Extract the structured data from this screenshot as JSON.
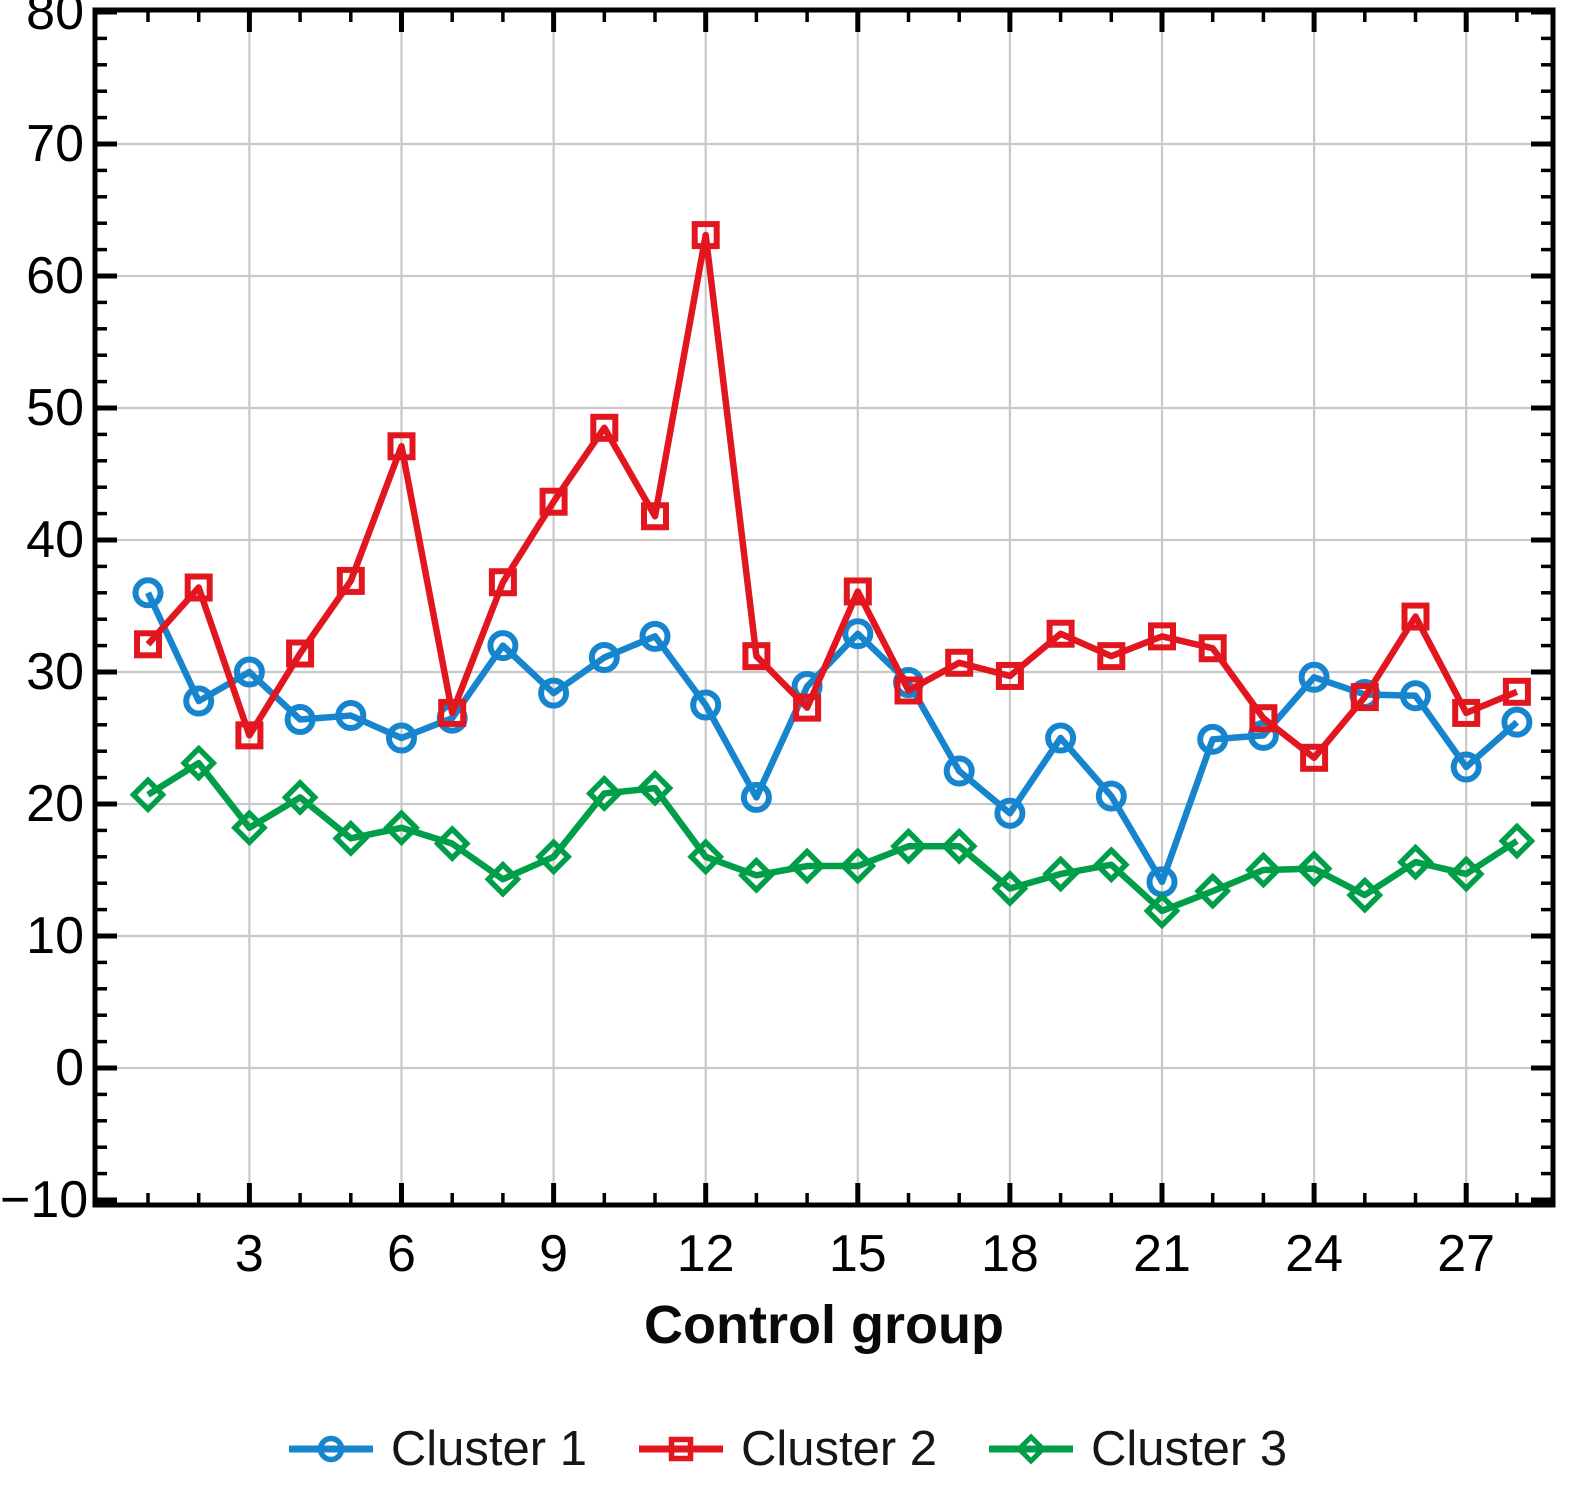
{
  "chart_data": {
    "type": "line",
    "xlabel": "Control group",
    "ylabel": "",
    "ylim": [
      -10,
      80
    ],
    "xlim": [
      0,
      28.7
    ],
    "grid": true,
    "legend_position": "bottom",
    "x": [
      1,
      2,
      3,
      4,
      5,
      6,
      7,
      8,
      9,
      10,
      11,
      12,
      13,
      14,
      15,
      16,
      17,
      18,
      19,
      20,
      21,
      22,
      23,
      24,
      25,
      26,
      27,
      28
    ],
    "series": [
      {
        "name": "Cluster 1",
        "marker": "circle",
        "color": "#1685cd",
        "values": [
          36.0,
          27.8,
          30.0,
          26.4,
          26.7,
          25.0,
          26.5,
          32.0,
          28.4,
          31.1,
          32.7,
          27.5,
          20.5,
          28.9,
          32.9,
          29.2,
          22.5,
          19.3,
          25.0,
          20.6,
          14.1,
          24.9,
          25.2,
          29.6,
          28.3,
          28.2,
          22.8,
          26.2
        ]
      },
      {
        "name": "Cluster 2",
        "marker": "square",
        "color": "#e2161f",
        "values": [
          32.1,
          36.4,
          25.2,
          31.4,
          36.9,
          47.1,
          26.9,
          36.8,
          42.9,
          48.5,
          41.8,
          63.1,
          31.2,
          27.3,
          36.1,
          28.6,
          30.7,
          29.7,
          32.9,
          31.2,
          32.7,
          31.8,
          26.5,
          23.5,
          28.1,
          34.2,
          26.9,
          28.5
        ]
      },
      {
        "name": "Cluster 3",
        "marker": "diamond",
        "color": "#009e49",
        "values": [
          20.7,
          23.1,
          18.2,
          20.5,
          17.4,
          18.2,
          17.0,
          14.3,
          16.0,
          20.8,
          21.2,
          16.0,
          14.6,
          15.3,
          15.3,
          16.8,
          16.8,
          13.6,
          14.7,
          15.4,
          11.9,
          13.4,
          15.0,
          15.1,
          13.1,
          15.6,
          14.7,
          17.2
        ]
      }
    ],
    "xticks": [
      {
        "value": 3,
        "label": "3"
      },
      {
        "value": 6,
        "label": "6"
      },
      {
        "value": 9,
        "label": "9"
      },
      {
        "value": 12,
        "label": "12"
      },
      {
        "value": 15,
        "label": "15"
      },
      {
        "value": 18,
        "label": "18"
      },
      {
        "value": 21,
        "label": "21"
      },
      {
        "value": 24,
        "label": "24"
      },
      {
        "value": 27,
        "label": "27"
      }
    ],
    "yticks": [
      {
        "value": 80,
        "label": "80"
      },
      {
        "value": 70,
        "label": "70"
      },
      {
        "value": 60,
        "label": "60"
      },
      {
        "value": 50,
        "label": "50"
      },
      {
        "value": 40,
        "label": "40"
      },
      {
        "value": 30,
        "label": "30"
      },
      {
        "value": 20,
        "label": "20"
      },
      {
        "value": 10,
        "label": "10"
      },
      {
        "value": 0,
        "label": "0"
      },
      {
        "value": -10,
        "label": "−10"
      }
    ],
    "colors": {
      "grid": "#c9c9c9",
      "axis": "#000000",
      "tick_text": "#000000"
    }
  }
}
